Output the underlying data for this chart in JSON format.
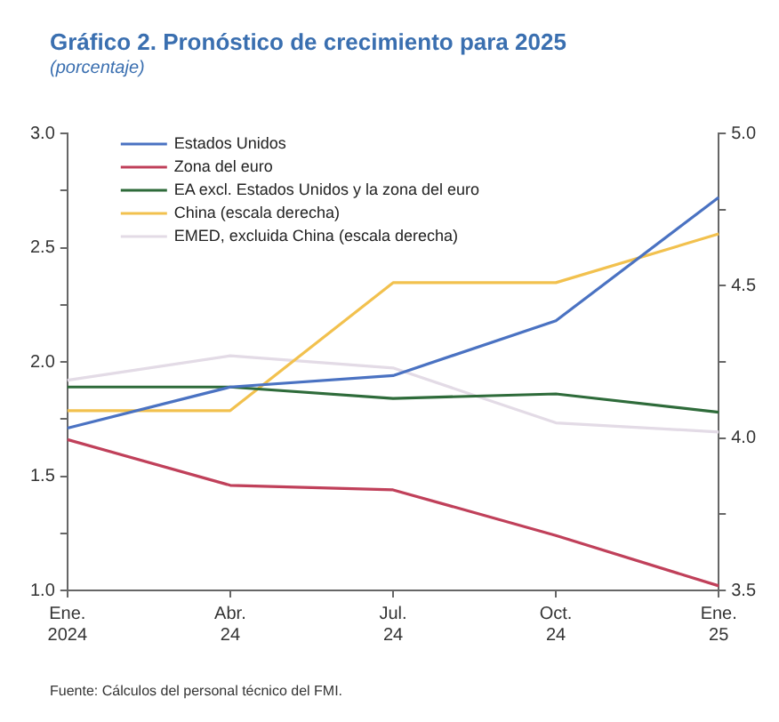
{
  "chart_data": {
    "type": "line",
    "title": "Gráfico 2. Pronóstico de crecimiento para 2025",
    "subtitle": "(porcentaje)",
    "categories": [
      "Ene.\n2024",
      "Abr.\n24",
      "Jul.\n24",
      "Oct.\n24",
      "Ene.\n25"
    ],
    "series": [
      {
        "name": "Estados Unidos",
        "color": "#4a72c2",
        "values": [
          1.71,
          1.89,
          1.94,
          2.18,
          2.72
        ]
      },
      {
        "name": "Zona del euro",
        "color": "#c0405a",
        "values": [
          1.66,
          1.46,
          1.44,
          1.24,
          1.02
        ]
      },
      {
        "name": "EA excl. Estados Unidos y la zona del euro",
        "color": "#2e6b3a",
        "values": [
          1.89,
          1.89,
          1.84,
          1.86,
          1.78
        ]
      },
      {
        "name": "China (escala derecha)",
        "color": "#f2c14e",
        "axis": "y2",
        "values": [
          4.09,
          4.09,
          4.51,
          4.51,
          4.67
        ]
      },
      {
        "name": "EMED, excluida China (escala derecha)",
        "color": "#e3dbe6",
        "axis": "y2",
        "values": [
          4.19,
          4.27,
          4.23,
          4.05,
          4.02
        ]
      }
    ],
    "ylim": [
      1.0,
      3.0
    ],
    "yticks": [
      {
        "value": 1,
        "label": "1.0"
      },
      {
        "value": 1.25,
        "label": null
      },
      {
        "value": 1.5,
        "label": "1.5"
      },
      {
        "value": 1.75,
        "label": null
      },
      {
        "value": 2,
        "label": "2.0"
      },
      {
        "value": 2.25,
        "label": null
      },
      {
        "value": 2.5,
        "label": "2.5"
      },
      {
        "value": 2.75,
        "label": null
      },
      {
        "value": 3,
        "label": "3.0"
      }
    ],
    "y2lim": [
      3.5,
      5.0
    ],
    "y2ticks": [
      {
        "value": 3.5,
        "label": "3.5"
      },
      {
        "value": 3.75,
        "label": null
      },
      {
        "value": 4,
        "label": "4.0"
      },
      {
        "value": 4.25,
        "label": null
      },
      {
        "value": 4.5,
        "label": "4.5"
      },
      {
        "value": 4.75,
        "label": null
      },
      {
        "value": 5,
        "label": "5.0"
      }
    ],
    "grid": false,
    "legend": "top left",
    "marker": "none",
    "line_style": "solid",
    "annotations": [
      "Fuente: Cálculos del personal técnico del FMI."
    ]
  }
}
